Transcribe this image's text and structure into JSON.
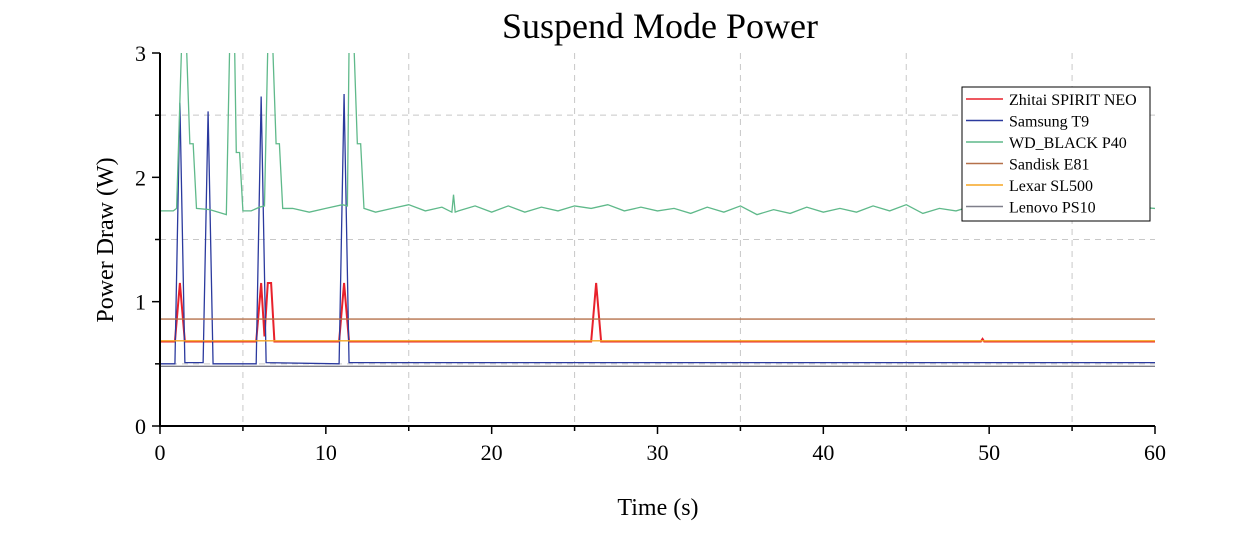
{
  "chart_data": {
    "type": "line",
    "title": "Suspend Mode Power",
    "xlabel": "Time (s)",
    "ylabel": "Power Draw (W)",
    "xlim": [
      0,
      60
    ],
    "ylim": [
      0,
      3
    ],
    "xticks": [
      "0",
      "10",
      "20",
      "30",
      "40",
      "50",
      "60"
    ],
    "yticks": [
      "0",
      "1",
      "2",
      "3"
    ],
    "grid": "dashed at minor ticks",
    "legend_placement": "top-right",
    "series": [
      {
        "name": "Zhitai SPIRIT NEO",
        "color": "#e8212b",
        "points": [
          [
            0,
            0.68
          ],
          [
            0.9,
            0.68
          ],
          [
            1.2,
            1.15
          ],
          [
            1.5,
            0.68
          ],
          [
            5.8,
            0.68
          ],
          [
            6.1,
            1.15
          ],
          [
            6.3,
            0.72
          ],
          [
            6.5,
            1.15
          ],
          [
            6.7,
            1.15
          ],
          [
            6.9,
            0.68
          ],
          [
            10.8,
            0.68
          ],
          [
            11.1,
            1.15
          ],
          [
            11.4,
            0.68
          ],
          [
            26,
            0.68
          ],
          [
            26.3,
            1.15
          ],
          [
            26.6,
            0.68
          ],
          [
            49.5,
            0.68
          ],
          [
            49.6,
            0.7
          ],
          [
            49.7,
            0.68
          ],
          [
            60,
            0.68
          ]
        ]
      },
      {
        "name": "Samsung T9",
        "color": "#2b3a9e",
        "points": [
          [
            0,
            0.5
          ],
          [
            0.9,
            0.5
          ],
          [
            1.2,
            2.6
          ],
          [
            1.5,
            0.51
          ],
          [
            2.6,
            0.51
          ],
          [
            2.9,
            2.53
          ],
          [
            3.2,
            0.5
          ],
          [
            5.8,
            0.5
          ],
          [
            6.1,
            2.65
          ],
          [
            6.4,
            0.51
          ],
          [
            10.8,
            0.5
          ],
          [
            11.1,
            2.67
          ],
          [
            11.4,
            0.51
          ],
          [
            60,
            0.51
          ]
        ]
      },
      {
        "name": "WD_BLACK P40",
        "color": "#5fb98a",
        "points": [
          [
            0,
            1.73
          ],
          [
            0.8,
            1.73
          ],
          [
            1.0,
            1.75
          ],
          [
            1.3,
            3.05
          ],
          [
            1.6,
            3.05
          ],
          [
            1.8,
            2.27
          ],
          [
            2.0,
            2.27
          ],
          [
            2.2,
            1.75
          ],
          [
            3,
            1.74
          ],
          [
            3.5,
            1.72
          ],
          [
            4.0,
            1.7
          ],
          [
            4.2,
            3.05
          ],
          [
            4.5,
            3.05
          ],
          [
            4.6,
            2.2
          ],
          [
            4.8,
            2.2
          ],
          [
            5.0,
            1.73
          ],
          [
            5.5,
            1.73
          ],
          [
            6.0,
            1.76
          ],
          [
            6.3,
            1.77
          ],
          [
            6.5,
            3.05
          ],
          [
            6.8,
            3.05
          ],
          [
            7.0,
            2.27
          ],
          [
            7.2,
            2.27
          ],
          [
            7.4,
            1.75
          ],
          [
            8,
            1.75
          ],
          [
            9,
            1.72
          ],
          [
            10,
            1.75
          ],
          [
            11,
            1.78
          ],
          [
            11.3,
            1.77
          ],
          [
            11.4,
            3.05
          ],
          [
            11.7,
            3.05
          ],
          [
            11.9,
            2.27
          ],
          [
            12.1,
            2.27
          ],
          [
            12.3,
            1.75
          ],
          [
            13,
            1.72
          ],
          [
            14,
            1.75
          ],
          [
            15,
            1.78
          ],
          [
            16,
            1.73
          ],
          [
            17,
            1.76
          ],
          [
            17.6,
            1.72
          ],
          [
            17.7,
            1.86
          ],
          [
            17.8,
            1.72
          ],
          [
            18,
            1.73
          ],
          [
            19,
            1.77
          ],
          [
            20,
            1.72
          ],
          [
            21,
            1.77
          ],
          [
            22,
            1.72
          ],
          [
            23,
            1.76
          ],
          [
            24,
            1.73
          ],
          [
            25,
            1.77
          ],
          [
            26,
            1.75
          ],
          [
            27,
            1.78
          ],
          [
            28,
            1.73
          ],
          [
            29,
            1.76
          ],
          [
            30,
            1.73
          ],
          [
            31,
            1.75
          ],
          [
            32,
            1.71
          ],
          [
            33,
            1.76
          ],
          [
            34,
            1.72
          ],
          [
            35,
            1.77
          ],
          [
            36,
            1.7
          ],
          [
            37,
            1.74
          ],
          [
            38,
            1.71
          ],
          [
            39,
            1.76
          ],
          [
            40,
            1.72
          ],
          [
            41,
            1.75
          ],
          [
            42,
            1.72
          ],
          [
            43,
            1.77
          ],
          [
            44,
            1.73
          ],
          [
            45,
            1.78
          ],
          [
            46,
            1.71
          ],
          [
            47,
            1.75
          ],
          [
            48,
            1.73
          ],
          [
            49,
            1.77
          ],
          [
            50,
            1.74
          ],
          [
            51,
            1.76
          ],
          [
            52,
            1.74
          ],
          [
            53,
            1.76
          ],
          [
            54,
            1.74
          ],
          [
            55,
            1.76
          ],
          [
            56,
            1.74
          ],
          [
            57,
            1.76
          ],
          [
            58,
            1.74
          ],
          [
            59,
            1.76
          ],
          [
            60,
            1.75
          ]
        ]
      },
      {
        "name": "Sandisk E81",
        "color": "#b5714a",
        "points": [
          [
            0,
            0.86
          ],
          [
            60,
            0.86
          ]
        ]
      },
      {
        "name": "Lexar SL500",
        "color": "#f5a623",
        "points": [
          [
            0,
            0.685
          ],
          [
            60,
            0.685
          ]
        ]
      },
      {
        "name": "Lenovo PS10",
        "color": "#7f7f8a",
        "points": [
          [
            0,
            0.48
          ],
          [
            60,
            0.48
          ]
        ]
      }
    ]
  }
}
